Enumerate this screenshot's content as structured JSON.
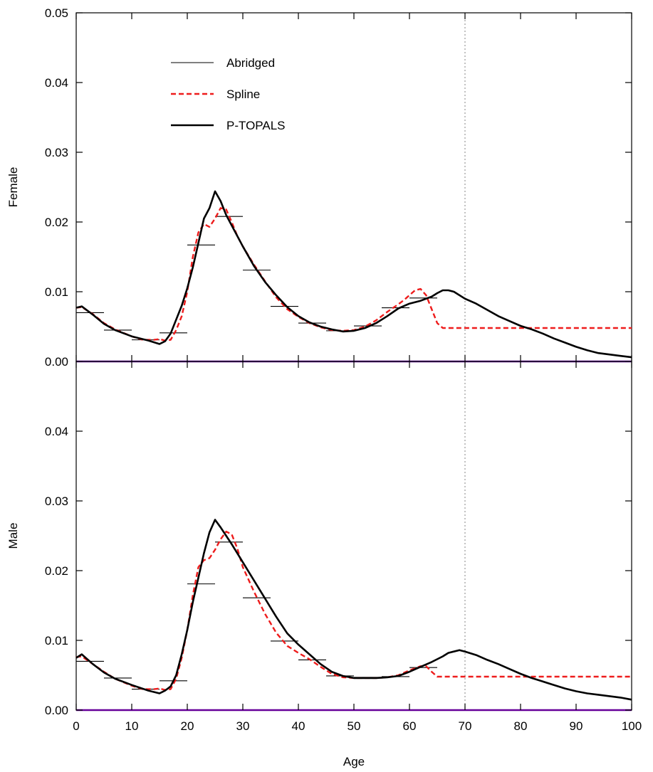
{
  "chart_data": {
    "type": "line",
    "xlabel": "Age",
    "xlim": [
      0,
      100
    ],
    "x_ticks": [
      0,
      10,
      20,
      30,
      40,
      50,
      60,
      70,
      80,
      90,
      100
    ],
    "x_tick_labels": [
      "0",
      "10",
      "20",
      "30",
      "40",
      "50",
      "60",
      "70",
      "80",
      "90",
      "100"
    ],
    "ylim": [
      0,
      0.05
    ],
    "y_ticks": [
      0,
      0.01,
      0.02,
      0.03,
      0.04,
      0.05
    ],
    "y_tick_labels_top": [
      "0.00",
      "0.01",
      "0.02",
      "0.03",
      "0.04",
      "0.05"
    ],
    "y_tick_labels_bottom": [
      "0.00",
      "0.01",
      "0.02",
      "0.03",
      "0.04"
    ],
    "reference_line_x": 70,
    "reference_line_color": "#999999",
    "baseline_color": "#660099",
    "grid": false,
    "legend": {
      "placement": "top-left",
      "entries": [
        {
          "label": "Abridged",
          "style": "thin-solid",
          "color": "#000000"
        },
        {
          "label": "Spline",
          "style": "dashed",
          "color": "#ee1c1c"
        },
        {
          "label": "P-TOPALS",
          "style": "thick-solid",
          "color": "#000000"
        }
      ]
    },
    "panels": [
      {
        "ylabel": "Female",
        "abridged": [
          {
            "x0": 0,
            "x1": 5,
            "y": 0.007
          },
          {
            "x0": 5,
            "x1": 10,
            "y": 0.0045
          },
          {
            "x0": 10,
            "x1": 15,
            "y": 0.0031
          },
          {
            "x0": 15,
            "x1": 20,
            "y": 0.0041
          },
          {
            "x0": 20,
            "x1": 25,
            "y": 0.0167
          },
          {
            "x0": 25,
            "x1": 30,
            "y": 0.0208
          },
          {
            "x0": 30,
            "x1": 35,
            "y": 0.0131
          },
          {
            "x0": 35,
            "x1": 40,
            "y": 0.0079
          },
          {
            "x0": 40,
            "x1": 45,
            "y": 0.0055
          },
          {
            "x0": 45,
            "x1": 50,
            "y": 0.0044
          },
          {
            "x0": 50,
            "x1": 55,
            "y": 0.0051
          },
          {
            "x0": 55,
            "x1": 60,
            "y": 0.0077
          },
          {
            "x0": 60,
            "x1": 65,
            "y": 0.0091
          }
        ],
        "spline": {
          "x": [
            0,
            1,
            3,
            5,
            7,
            10,
            12,
            14,
            15,
            16,
            17,
            18,
            19,
            20,
            21,
            22,
            23,
            24,
            25,
            26,
            27,
            28,
            29,
            30,
            32,
            34,
            36,
            38,
            40,
            42,
            44,
            46,
            48,
            50,
            52,
            54,
            56,
            58,
            59,
            60,
            61,
            62,
            63,
            64,
            65,
            66,
            70,
            80,
            90,
            100
          ],
          "y": [
            0.0077,
            0.0078,
            0.0068,
            0.0055,
            0.0046,
            0.0036,
            0.0031,
            0.0031,
            0.0032,
            0.003,
            0.0031,
            0.0045,
            0.0065,
            0.01,
            0.015,
            0.0185,
            0.0197,
            0.0193,
            0.0205,
            0.022,
            0.0218,
            0.02,
            0.018,
            0.0165,
            0.0139,
            0.0115,
            0.0092,
            0.0075,
            0.0064,
            0.0055,
            0.0049,
            0.0045,
            0.0044,
            0.0045,
            0.005,
            0.0059,
            0.0071,
            0.0082,
            0.0088,
            0.0095,
            0.0102,
            0.0104,
            0.0095,
            0.0075,
            0.0055,
            0.0048,
            0.0048,
            0.0048,
            0.0048,
            0.0048
          ]
        },
        "ptopals": {
          "x": [
            0,
            1,
            3,
            5,
            7,
            10,
            13,
            15,
            16,
            17,
            18,
            19,
            20,
            21,
            22,
            23,
            24,
            25,
            26,
            27,
            28,
            30,
            32,
            34,
            36,
            38,
            40,
            42,
            44,
            46,
            48,
            50,
            52,
            54,
            56,
            58,
            60,
            62,
            64,
            65,
            66,
            67,
            68,
            70,
            72,
            74,
            76,
            78,
            80,
            82,
            84,
            86,
            88,
            90,
            92,
            94,
            96,
            98,
            100
          ],
          "y": [
            0.0077,
            0.0079,
            0.0067,
            0.0054,
            0.0045,
            0.0036,
            0.003,
            0.0025,
            0.0029,
            0.004,
            0.006,
            0.008,
            0.0105,
            0.0135,
            0.017,
            0.0205,
            0.022,
            0.0244,
            0.023,
            0.021,
            0.0195,
            0.0165,
            0.0137,
            0.0114,
            0.0095,
            0.0078,
            0.0065,
            0.0056,
            0.005,
            0.0046,
            0.0043,
            0.0044,
            0.0048,
            0.0055,
            0.0065,
            0.0076,
            0.0083,
            0.0087,
            0.0093,
            0.0098,
            0.0102,
            0.0102,
            0.01,
            0.009,
            0.0083,
            0.0074,
            0.0065,
            0.0058,
            0.0051,
            0.0046,
            0.004,
            0.0033,
            0.0027,
            0.0021,
            0.0016,
            0.0012,
            0.001,
            0.0008,
            0.0006
          ]
        }
      },
      {
        "ylabel": "Male",
        "abridged": [
          {
            "x0": 0,
            "x1": 5,
            "y": 0.007
          },
          {
            "x0": 5,
            "x1": 10,
            "y": 0.0046
          },
          {
            "x0": 10,
            "x1": 15,
            "y": 0.003
          },
          {
            "x0": 15,
            "x1": 20,
            "y": 0.0042
          },
          {
            "x0": 20,
            "x1": 25,
            "y": 0.0181
          },
          {
            "x0": 25,
            "x1": 30,
            "y": 0.0241
          },
          {
            "x0": 30,
            "x1": 35,
            "y": 0.0161
          },
          {
            "x0": 35,
            "x1": 40,
            "y": 0.0099
          },
          {
            "x0": 40,
            "x1": 45,
            "y": 0.0072
          },
          {
            "x0": 45,
            "x1": 50,
            "y": 0.0049
          },
          {
            "x0": 50,
            "x1": 55,
            "y": 0.0047
          },
          {
            "x0": 55,
            "x1": 60,
            "y": 0.0048
          },
          {
            "x0": 60,
            "x1": 65,
            "y": 0.0061
          }
        ],
        "spline": {
          "x": [
            0,
            1,
            3,
            5,
            7,
            10,
            12,
            14,
            15,
            16,
            17,
            18,
            19,
            20,
            21,
            22,
            23,
            24,
            25,
            26,
            27,
            28,
            29,
            30,
            32,
            34,
            36,
            38,
            40,
            42,
            44,
            46,
            48,
            50,
            52,
            54,
            56,
            58,
            60,
            62,
            63,
            64,
            65,
            66,
            70,
            80,
            90,
            100
          ],
          "y": [
            0.0076,
            0.0077,
            0.0066,
            0.0055,
            0.0045,
            0.0035,
            0.003,
            0.003,
            0.0031,
            0.0029,
            0.003,
            0.0045,
            0.0075,
            0.0115,
            0.0165,
            0.0205,
            0.0215,
            0.0218,
            0.023,
            0.0245,
            0.0256,
            0.0252,
            0.0232,
            0.0205,
            0.017,
            0.0138,
            0.0111,
            0.0092,
            0.0082,
            0.0073,
            0.0062,
            0.0052,
            0.0047,
            0.0046,
            0.0046,
            0.0046,
            0.0047,
            0.005,
            0.0057,
            0.0063,
            0.0063,
            0.0055,
            0.0048,
            0.0048,
            0.0048,
            0.0048,
            0.0048,
            0.0048
          ]
        },
        "ptopals": {
          "x": [
            0,
            1,
            3,
            5,
            7,
            10,
            13,
            15,
            16,
            17,
            18,
            19,
            20,
            21,
            22,
            23,
            24,
            25,
            26,
            27,
            28,
            30,
            32,
            34,
            36,
            38,
            40,
            42,
            44,
            46,
            48,
            50,
            52,
            54,
            56,
            58,
            60,
            62,
            64,
            66,
            67,
            69,
            70,
            72,
            74,
            76,
            78,
            80,
            82,
            84,
            86,
            88,
            90,
            92,
            94,
            96,
            98,
            100
          ],
          "y": [
            0.0075,
            0.008,
            0.0066,
            0.0054,
            0.0045,
            0.0036,
            0.0028,
            0.0024,
            0.0028,
            0.0034,
            0.005,
            0.008,
            0.0115,
            0.0155,
            0.019,
            0.0225,
            0.0255,
            0.0273,
            0.0262,
            0.025,
            0.0238,
            0.0212,
            0.0186,
            0.016,
            0.0134,
            0.011,
            0.0094,
            0.008,
            0.0066,
            0.0055,
            0.0049,
            0.0046,
            0.0046,
            0.0046,
            0.0047,
            0.0049,
            0.0055,
            0.0062,
            0.0069,
            0.0077,
            0.0082,
            0.0086,
            0.0084,
            0.0079,
            0.0072,
            0.0066,
            0.0059,
            0.0052,
            0.0046,
            0.0041,
            0.0036,
            0.0031,
            0.0027,
            0.0024,
            0.0022,
            0.002,
            0.0018,
            0.0015
          ]
        }
      }
    ]
  }
}
